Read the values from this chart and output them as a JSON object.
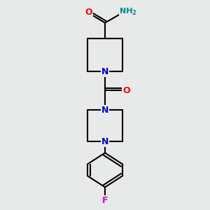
{
  "background_color": "#e8eaea",
  "atom_colors": {
    "C": "#000000",
    "N": "#0000cc",
    "O": "#ff0000",
    "F": "#dd00dd",
    "H": "#008888"
  },
  "bond_color": "#000000",
  "bond_width": 1.5,
  "figsize": [
    3.0,
    3.0
  ],
  "dpi": 100,
  "xlim": [
    0,
    10
  ],
  "ylim": [
    0,
    10
  ]
}
